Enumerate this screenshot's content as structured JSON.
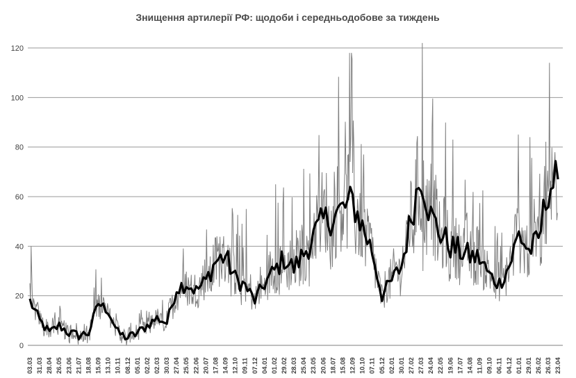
{
  "chart_data": {
    "type": "line",
    "title": "Знищення артилерії  РФ: щодоби і середньодобове за тиждень",
    "xlabel": "",
    "ylabel": "",
    "ylim": [
      0,
      120
    ],
    "yticks": [
      0,
      20,
      40,
      60,
      80,
      100,
      120
    ],
    "grid": true,
    "legend": "none",
    "x_tick_labels": [
      "03.03",
      "31.03",
      "28.04",
      "26.05",
      "23.06",
      "21.07",
      "18.08",
      "15.09",
      "13.10",
      "10.11",
      "08.12",
      "05.01",
      "02.02",
      "02.03",
      "30.03",
      "27.04",
      "25.05",
      "22.06",
      "20.07",
      "17.08",
      "14.09",
      "12.10",
      "09.11",
      "07.12",
      "04.01",
      "01.02",
      "29.02",
      "28.03",
      "25.04",
      "23.05",
      "20.06",
      "18.07",
      "15.08",
      "12.09",
      "10.10",
      "07.11",
      "05.12",
      "02.01",
      "30.01",
      "27.02",
      "27.03",
      "24.04",
      "22.05",
      "19.06",
      "17.07",
      "14.08",
      "11.09",
      "09.10",
      "06.11",
      "04.12",
      "01.01",
      "29.01",
      "26.02",
      "26.03",
      "23.04"
    ],
    "weekly_average_by_tick": [
      18,
      10,
      5,
      8,
      5,
      4,
      5,
      17,
      14,
      5,
      3,
      5,
      8,
      11,
      9,
      23,
      25,
      22,
      26,
      34,
      36,
      27,
      24,
      18,
      25,
      30,
      35,
      31,
      37,
      44,
      50,
      52,
      55,
      58,
      48,
      38,
      20,
      26,
      32,
      52,
      70,
      52,
      45,
      40,
      38,
      36,
      35,
      28,
      25,
      32,
      45,
      38,
      42,
      64,
      67
    ],
    "daily_peaks": [
      {
        "x": "03.03",
        "y": 40
      },
      {
        "x": "17.08",
        "y": 44
      },
      {
        "x": "09.11",
        "y": 55
      },
      {
        "x": "01.02",
        "y": 65
      },
      {
        "x": "18.07",
        "y": 70
      },
      {
        "x": "12.09",
        "y": 81
      },
      {
        "x": "10.10",
        "y": 77
      },
      {
        "x": "27.03",
        "y": 104
      },
      {
        "x": "27.03",
        "y": 122
      },
      {
        "x": "24.04",
        "y": 88
      },
      {
        "x": "06.11",
        "y": 40
      },
      {
        "x": "29.01",
        "y": 84
      },
      {
        "x": "26.03",
        "y": 114
      }
    ],
    "series": [
      {
        "values_note": "daily",
        "color": "#7f7f7f"
      },
      {
        "values_note": "weekly",
        "color": "#000000"
      }
    ]
  }
}
